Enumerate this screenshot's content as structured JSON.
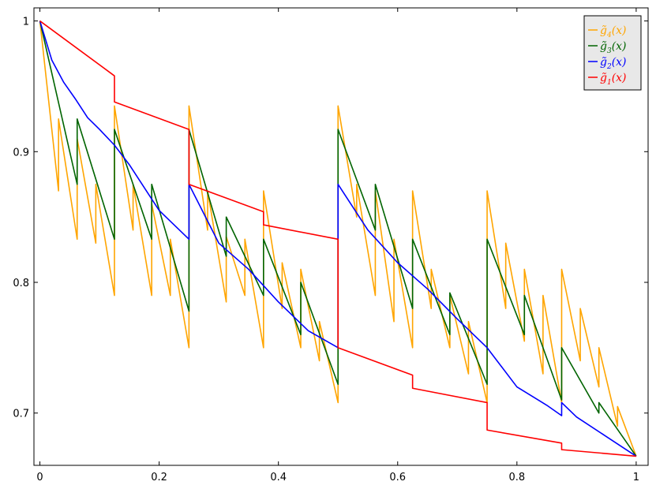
{
  "chart_data": {
    "type": "line",
    "title": "",
    "xlabel": "",
    "ylabel": "",
    "xlim": [
      -0.01,
      1.02
    ],
    "ylim": [
      0.66,
      1.01
    ],
    "x_ticks": [
      0,
      0.2,
      0.4,
      0.6,
      0.8,
      1
    ],
    "x_tick_labels": [
      "0",
      "0.2",
      "0.4",
      "0.6",
      "0.8",
      "1"
    ],
    "y_ticks": [
      0.7,
      0.8,
      0.9,
      1
    ],
    "y_tick_labels": [
      "0.7",
      "0.8",
      "0.9",
      "1"
    ],
    "grid": false,
    "legend_position": "top-right",
    "legend": [
      {
        "label_base": "g̃",
        "label_sub": "4",
        "label_rest": "(x)",
        "color": "#ffa500",
        "series": "g4"
      },
      {
        "label_base": "g̃",
        "label_sub": "3",
        "label_rest": "(x)",
        "color": "#006400",
        "series": "g3"
      },
      {
        "label_base": "g̃",
        "label_sub": "2",
        "label_rest": "(x)",
        "color": "#0000ff",
        "series": "g2"
      },
      {
        "label_base": "g̃",
        "label_sub": "1",
        "label_rest": "(x)",
        "color": "#ff0000",
        "series": "g1"
      }
    ],
    "series": [
      {
        "name": "g̃1(x)",
        "id": "g1",
        "color": "#ff0000",
        "x": [
          0.0,
          0.125,
          0.125,
          0.25,
          0.25,
          0.375,
          0.375,
          0.5,
          0.5,
          0.625,
          0.625,
          0.75,
          0.75,
          0.875,
          0.875,
          1.0
        ],
        "y": [
          1.0,
          0.958,
          0.938,
          0.917,
          0.875,
          0.854,
          0.844,
          0.833,
          0.75,
          0.729,
          0.719,
          0.708,
          0.687,
          0.677,
          0.672,
          0.667
        ]
      },
      {
        "name": "g̃2(x)",
        "id": "g2",
        "color": "#0000ff",
        "x": [
          0.0,
          0.02,
          0.04,
          0.06,
          0.08,
          0.1,
          0.125,
          0.125,
          0.15,
          0.2,
          0.25,
          0.25,
          0.3,
          0.35,
          0.4,
          0.45,
          0.5,
          0.5,
          0.55,
          0.6,
          0.65,
          0.7,
          0.75,
          0.75,
          0.8,
          0.85,
          0.875,
          0.875,
          0.9,
          0.95,
          1.0
        ],
        "y": [
          1.0,
          0.97,
          0.953,
          0.94,
          0.926,
          0.917,
          0.905,
          0.905,
          0.89,
          0.855,
          0.833,
          0.875,
          0.83,
          0.81,
          0.785,
          0.763,
          0.75,
          0.875,
          0.84,
          0.815,
          0.795,
          0.772,
          0.75,
          0.75,
          0.72,
          0.706,
          0.698,
          0.708,
          0.697,
          0.682,
          0.667
        ]
      },
      {
        "name": "g̃3(x)",
        "id": "g3",
        "color": "#006400",
        "x": [
          0.0,
          0.0625,
          0.0625,
          0.125,
          0.125,
          0.1875,
          0.1875,
          0.25,
          0.25,
          0.3125,
          0.3125,
          0.375,
          0.375,
          0.4375,
          0.4375,
          0.5,
          0.5,
          0.5625,
          0.5625,
          0.625,
          0.625,
          0.6875,
          0.6875,
          0.75,
          0.75,
          0.8125,
          0.8125,
          0.875,
          0.875,
          0.9375,
          0.9375,
          1.0
        ],
        "y": [
          1.0,
          0.875,
          0.925,
          0.833,
          0.917,
          0.833,
          0.875,
          0.778,
          0.917,
          0.82,
          0.85,
          0.79,
          0.833,
          0.76,
          0.8,
          0.722,
          0.917,
          0.84,
          0.875,
          0.78,
          0.833,
          0.76,
          0.792,
          0.722,
          0.833,
          0.76,
          0.79,
          0.71,
          0.75,
          0.7,
          0.708,
          0.667
        ]
      },
      {
        "name": "g̃4(x)",
        "id": "g4",
        "color": "#ffa500",
        "x": [
          0.0,
          0.03125,
          0.03125,
          0.0625,
          0.0625,
          0.09375,
          0.09375,
          0.125,
          0.125,
          0.15625,
          0.15625,
          0.1875,
          0.1875,
          0.21875,
          0.21875,
          0.25,
          0.25,
          0.28125,
          0.28125,
          0.3125,
          0.3125,
          0.34375,
          0.34375,
          0.375,
          0.375,
          0.40625,
          0.40625,
          0.4375,
          0.4375,
          0.46875,
          0.46875,
          0.5,
          0.5,
          0.53125,
          0.53125,
          0.5625,
          0.5625,
          0.59375,
          0.59375,
          0.625,
          0.625,
          0.65625,
          0.65625,
          0.6875,
          0.6875,
          0.71875,
          0.71875,
          0.75,
          0.75,
          0.78125,
          0.78125,
          0.8125,
          0.8125,
          0.84375,
          0.84375,
          0.875,
          0.875,
          0.90625,
          0.90625,
          0.9375,
          0.9375,
          0.96875,
          0.96875,
          1.0
        ],
        "y": [
          1.0,
          0.87,
          0.925,
          0.833,
          0.91,
          0.83,
          0.875,
          0.79,
          0.935,
          0.84,
          0.875,
          0.79,
          0.86,
          0.79,
          0.833,
          0.75,
          0.935,
          0.84,
          0.87,
          0.785,
          0.835,
          0.79,
          0.833,
          0.75,
          0.87,
          0.78,
          0.815,
          0.75,
          0.81,
          0.74,
          0.77,
          0.708,
          0.935,
          0.85,
          0.875,
          0.79,
          0.87,
          0.77,
          0.833,
          0.75,
          0.87,
          0.78,
          0.81,
          0.75,
          0.79,
          0.73,
          0.77,
          0.708,
          0.87,
          0.78,
          0.83,
          0.755,
          0.81,
          0.73,
          0.79,
          0.708,
          0.81,
          0.74,
          0.78,
          0.72,
          0.75,
          0.69,
          0.705,
          0.667
        ]
      }
    ]
  }
}
